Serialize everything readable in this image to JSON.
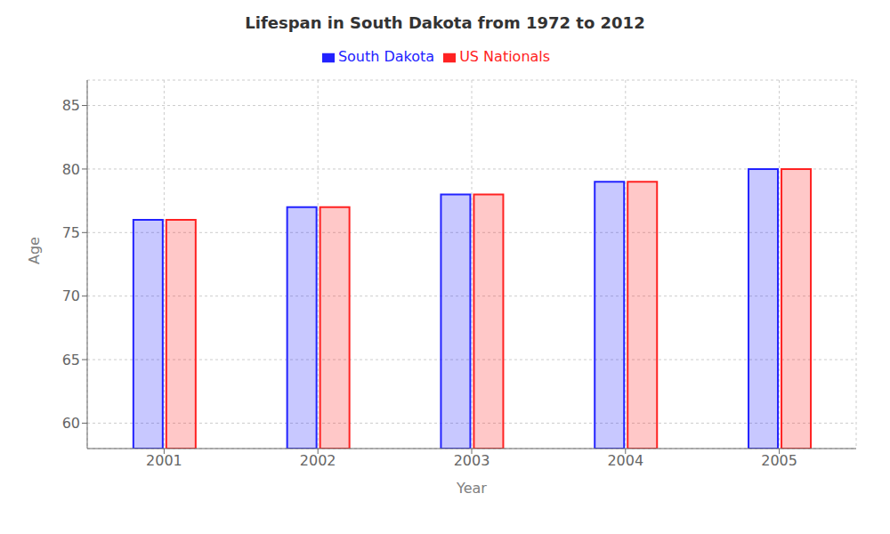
{
  "chart_data": {
    "type": "bar",
    "title": "Lifespan in South Dakota from 1972 to 2012",
    "x_label": "Year",
    "y_label": "Age",
    "categories": [
      "2001",
      "2002",
      "2003",
      "2004",
      "2005"
    ],
    "series": [
      {
        "name": "South Dakota",
        "color": "#2222ff",
        "values": [
          76,
          77,
          78,
          79,
          80
        ]
      },
      {
        "name": "US Nationals",
        "color": "#ff2222",
        "values": [
          76,
          77,
          78,
          79,
          80
        ]
      }
    ],
    "ylim": [
      58,
      87
    ],
    "yticks": [
      60,
      65,
      70,
      75,
      80,
      85
    ],
    "grid": true,
    "legend": "top"
  }
}
